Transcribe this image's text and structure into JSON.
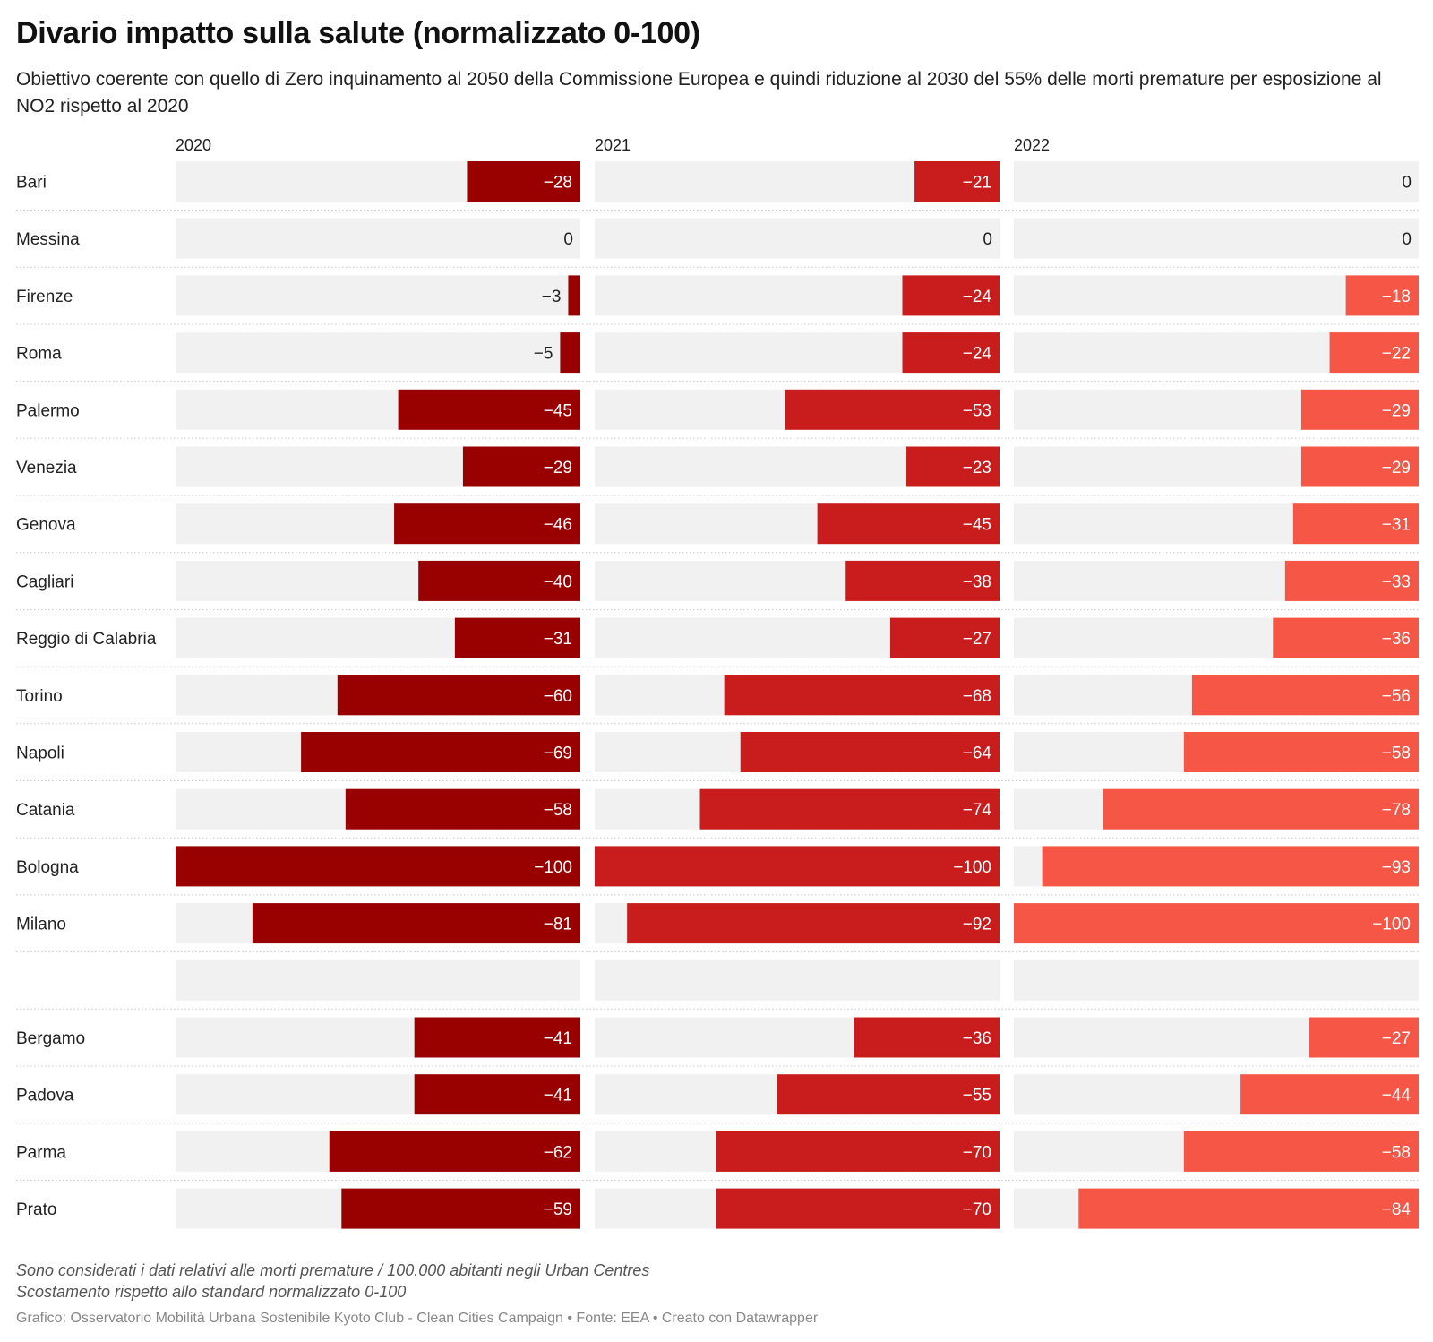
{
  "title": "Divario impatto sulla salute (normalizzato 0-100)",
  "subtitle": "Obiettivo coerente con quello di Zero inquinamento al 2050 della Commissione Europea e quindi riduzione al 2030 del 55% delle morti premature per esposizione al NO2 rispetto al 2020",
  "notes": [
    "Sono considerati i dati relativi alle morti premature / 100.000 abitanti negli Urban Centres",
    "Scostamento rispetto allo standard normalizzato 0-100"
  ],
  "footer": "Grafico: Osservatorio Mobilità Urbana Sostenibile Kyoto Club - Clean Cities Campaign • Fonte: EEA • Creato con Datawrapper",
  "chart_data": {
    "type": "bar",
    "orientation": "horizontal",
    "xlim": [
      -100,
      0
    ],
    "categories": [
      "Bari",
      "Messina",
      "Firenze",
      "Roma",
      "Palermo",
      "Venezia",
      "Genova",
      "Cagliari",
      "Reggio di Calabria",
      "Torino",
      "Napoli",
      "Catania",
      "Bologna",
      "Milano",
      "",
      "Bergamo",
      "Padova",
      "Parma",
      "Prato"
    ],
    "series": [
      {
        "name": "2020",
        "color": "#990000",
        "values": [
          -28,
          0,
          -3,
          -5,
          -45,
          -29,
          -46,
          -40,
          -31,
          -60,
          -69,
          -58,
          -100,
          -81,
          null,
          -41,
          -41,
          -62,
          -59
        ]
      },
      {
        "name": "2021",
        "color": "#c91c1c",
        "values": [
          -21,
          0,
          -24,
          -24,
          -53,
          -23,
          -45,
          -38,
          -27,
          -68,
          -64,
          -74,
          -100,
          -92,
          null,
          -36,
          -55,
          -70,
          -70
        ]
      },
      {
        "name": "2022",
        "color": "#f65646",
        "values": [
          0,
          0,
          -18,
          -22,
          -29,
          -29,
          -31,
          -33,
          -36,
          -56,
          -58,
          -78,
          -93,
          -100,
          null,
          -27,
          -44,
          -58,
          -84
        ]
      }
    ],
    "track_color": "#f1f1f1",
    "label_color_inside": "#ffffff",
    "label_color_outside": "#222222",
    "separator": "dotted"
  }
}
